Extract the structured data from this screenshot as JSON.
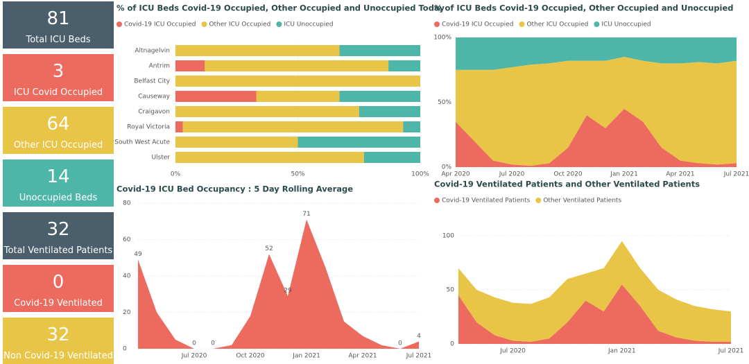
{
  "kpis": [
    {
      "value": 81,
      "label": "Total ICU Beds",
      "color": "#4a5f6b"
    },
    {
      "value": 3,
      "label": "ICU Covid Occupied",
      "color": "#ec6a5e"
    },
    {
      "value": 64,
      "label": "Other ICU Occupied",
      "color": "#e8c547"
    },
    {
      "value": 14,
      "label": "Unoccupied Beds",
      "color": "#4db6a8"
    },
    {
      "value": 32,
      "label": "Total Ventilated Patients",
      "color": "#4a5f6b"
    },
    {
      "value": 0,
      "label": "Covid-19 Ventilated",
      "color": "#ec6a5e"
    },
    {
      "value": 32,
      "label": "Non Covid-19 Ventilated",
      "color": "#e8c547"
    }
  ],
  "chart_data": [
    {
      "type": "hbar100",
      "title": "% of ICU Beds Covid-19 Occupied, Other Occupied and Unoccupied Today",
      "categories": [
        "Altnagelvin",
        "Antrim",
        "Belfast City",
        "Causeway",
        "Craigavon",
        "Royal Victoria",
        "South West Acute",
        "Ulster"
      ],
      "series": [
        {
          "name": "Covid-19 ICU Occupied",
          "color": "#ec6a5e",
          "values": [
            0,
            12,
            0,
            33,
            0,
            3,
            0,
            0
          ]
        },
        {
          "name": "Other ICU Occupied",
          "color": "#e8c547",
          "values": [
            67,
            75,
            100,
            34,
            75,
            90,
            50,
            77
          ]
        },
        {
          "name": "ICU Unoccupied",
          "color": "#4db6a8",
          "values": [
            33,
            13,
            0,
            33,
            25,
            7,
            50,
            23
          ]
        }
      ],
      "xlim": [
        0,
        100
      ],
      "xticks": [
        {
          "value": 0,
          "label": "0%"
        },
        {
          "value": 50,
          "label": "50%"
        },
        {
          "value": 100,
          "label": "100%"
        }
      ]
    },
    {
      "type": "area",
      "title": "% of ICU Beds Covid-19 Occupied, Other Occupied and Unoccupied",
      "x": [
        "2020-04",
        "2020-05",
        "2020-06",
        "2020-07",
        "2020-08",
        "2020-09",
        "2020-10",
        "2020-11",
        "2020-12",
        "2021-01",
        "2021-02",
        "2021-03",
        "2021-04",
        "2021-05",
        "2021-06",
        "2021-07"
      ],
      "series": [
        {
          "name": "Covid-19 ICU Occupied",
          "color": "#ec6a5e",
          "values": [
            35,
            20,
            5,
            2,
            1,
            3,
            15,
            40,
            30,
            45,
            35,
            15,
            5,
            3,
            2,
            3
          ]
        },
        {
          "name": "Other ICU Occupied",
          "color": "#e8c547",
          "values": [
            40,
            55,
            70,
            75,
            78,
            77,
            67,
            42,
            52,
            40,
            47,
            65,
            75,
            78,
            78,
            79
          ]
        },
        {
          "name": "ICU Unoccupied",
          "color": "#4db6a8",
          "values": [
            25,
            25,
            25,
            23,
            21,
            20,
            18,
            18,
            18,
            15,
            18,
            20,
            20,
            19,
            20,
            18
          ]
        }
      ],
      "ylim": [
        0,
        100
      ],
      "yticks": [
        {
          "value": 0,
          "label": "0%"
        },
        {
          "value": 50,
          "label": "50%"
        },
        {
          "value": 100,
          "label": "100%"
        }
      ],
      "xticks": [
        {
          "value": "2020-04",
          "label": "Apr 2020"
        },
        {
          "value": "2020-07",
          "label": "Jul 2020"
        },
        {
          "value": "2020-10",
          "label": "Oct 2020"
        },
        {
          "value": "2021-01",
          "label": "Jan 2021"
        },
        {
          "value": "2021-04",
          "label": "Apr 2021"
        },
        {
          "value": "2021-07",
          "label": "Jul 2021"
        }
      ]
    },
    {
      "type": "area",
      "title": "Covid-19 ICU Bed Occupancy : 5 Day Rolling Average",
      "x": [
        "2020-04",
        "2020-05",
        "2020-06",
        "2020-07",
        "2020-08",
        "2020-09",
        "2020-10",
        "2020-11",
        "2020-12",
        "2021-01",
        "2021-02",
        "2021-03",
        "2021-04",
        "2021-05",
        "2021-06",
        "2021-07"
      ],
      "series": [
        {
          "color": "#ec6a5e",
          "values": [
            49,
            20,
            5,
            0,
            0,
            2,
            18,
            52,
            29,
            71,
            45,
            15,
            7,
            2,
            0,
            4
          ],
          "value_labels": [
            "49",
            null,
            null,
            "0",
            "0",
            null,
            null,
            "52",
            "29",
            "71",
            null,
            null,
            null,
            null,
            "0",
            "4"
          ]
        }
      ],
      "ylim": [
        0,
        80
      ],
      "yticks": [
        0,
        20,
        40,
        60,
        80
      ],
      "xticks": [
        {
          "value": "2020-07",
          "label": "Jul 2020"
        },
        {
          "value": "2020-10",
          "label": "Oct 2020"
        },
        {
          "value": "2021-01",
          "label": "Jan 2021"
        },
        {
          "value": "2021-04",
          "label": "Apr 2021"
        },
        {
          "value": "2021-07",
          "label": "Jul 2021"
        }
      ]
    },
    {
      "type": "area",
      "title": "Covid-19 Ventilated Patients and Other Ventilated Patients",
      "x": [
        "2020-04",
        "2020-05",
        "2020-06",
        "2020-07",
        "2020-08",
        "2020-09",
        "2020-10",
        "2020-11",
        "2020-12",
        "2021-01",
        "2021-02",
        "2021-03",
        "2021-04",
        "2021-05",
        "2021-06",
        "2021-07"
      ],
      "series": [
        {
          "name": "Covid-19 Ventilated Patients",
          "color": "#ec6a5e",
          "values": [
            45,
            20,
            8,
            3,
            2,
            5,
            20,
            40,
            30,
            55,
            35,
            12,
            6,
            3,
            2,
            2
          ]
        },
        {
          "name": "Other Ventilated Patients",
          "color": "#e8c547",
          "values": [
            25,
            30,
            35,
            35,
            35,
            38,
            40,
            25,
            40,
            40,
            35,
            38,
            35,
            32,
            30,
            28
          ]
        }
      ],
      "ylim": [
        0,
        110
      ],
      "yticks": [
        0,
        50,
        100
      ],
      "xticks": [
        {
          "value": "2020-07",
          "label": "Jul 2020"
        },
        {
          "value": "2021-01",
          "label": "Jan 2021"
        },
        {
          "value": "2021-07",
          "label": "Jul 2021"
        }
      ]
    }
  ]
}
